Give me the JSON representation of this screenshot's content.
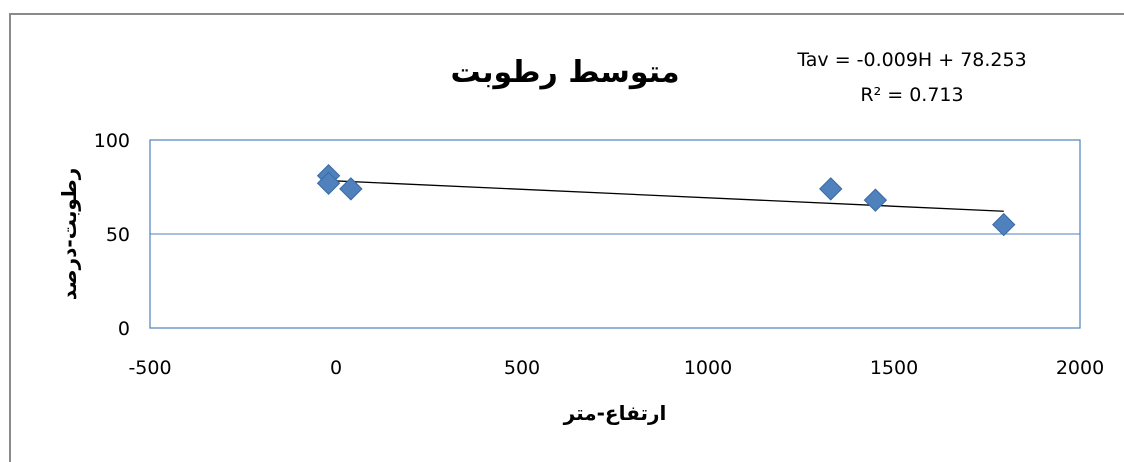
{
  "chart_data": {
    "type": "scatter",
    "title": "متوسط رطوبت",
    "xlabel": "ارتفاع-متر",
    "ylabel": "رطوبت-درصد",
    "xlim": [
      -500,
      2000
    ],
    "ylim": [
      0,
      100
    ],
    "xticks": [
      -500,
      0,
      500,
      1000,
      1500,
      2000
    ],
    "yticks": [
      0,
      50,
      100
    ],
    "grid": true,
    "legend": "none",
    "marker_color": "#4F81BD",
    "series": [
      {
        "x": [
          -20,
          -20,
          40,
          1330,
          1450,
          1795
        ],
        "y": [
          81,
          77,
          74,
          74,
          68,
          55
        ]
      }
    ],
    "trendline": {
      "slope": -0.009,
      "intercept": 78.253,
      "x_range": [
        -20,
        1795
      ],
      "equation": "Tav = -0.009H + 78.253",
      "r_squared_label": "R² = 0.713"
    }
  }
}
